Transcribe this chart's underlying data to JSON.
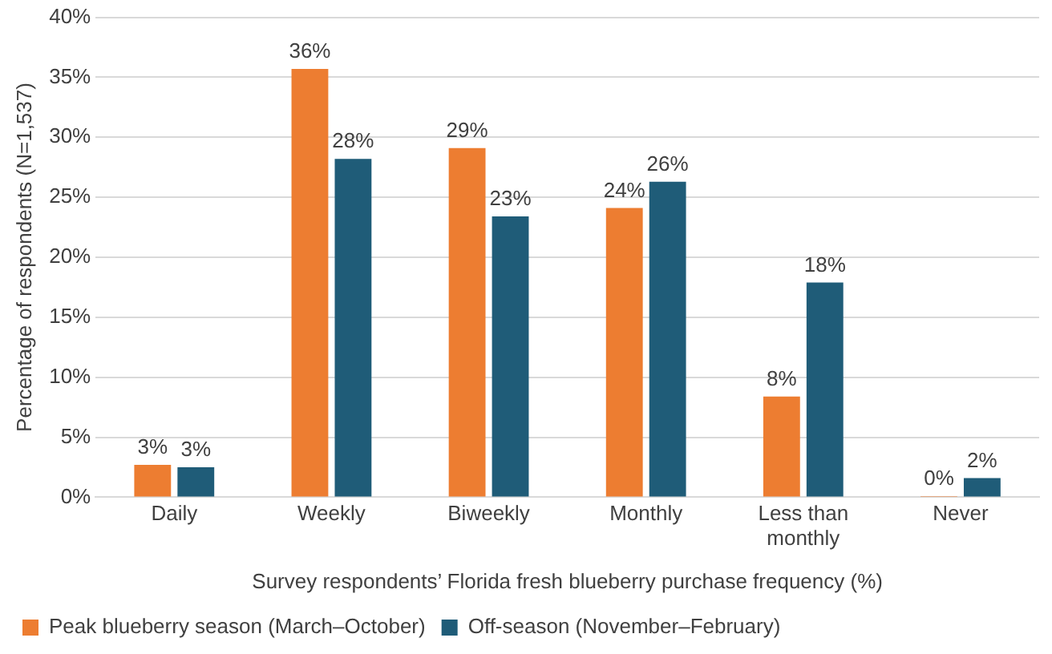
{
  "chart_data": {
    "type": "bar",
    "xlabel": "Survey respondents’ Florida fresh blueberry purchase frequency (%)",
    "ylabel": "Percentage of respondents (N=1,537)",
    "categories": [
      "Daily",
      "Weekly",
      "Biweekly",
      "Monthly",
      "Less than monthly",
      "Never"
    ],
    "series": [
      {
        "name": "Peak blueberry season (March–October)",
        "color": "#ed7d31",
        "values": [
          2.7,
          35.7,
          29.1,
          24.1,
          8.4,
          0.1
        ],
        "value_labels": [
          "3%",
          "36%",
          "29%",
          "24%",
          "8%",
          "0%"
        ]
      },
      {
        "name": "Off-season (November–February)",
        "color": "#1f5c78",
        "values": [
          2.5,
          28.2,
          23.4,
          26.3,
          17.9,
          1.6
        ],
        "value_labels": [
          "3%",
          "28%",
          "23%",
          "26%",
          "18%",
          "2%"
        ]
      }
    ],
    "ylim": [
      0,
      40
    ],
    "yticks": [
      {
        "value": 0,
        "label": "0%"
      },
      {
        "value": 5,
        "label": "5%"
      },
      {
        "value": 10,
        "label": "10%"
      },
      {
        "value": 15,
        "label": "15%"
      },
      {
        "value": 20,
        "label": "20%"
      },
      {
        "value": 25,
        "label": "25%"
      },
      {
        "value": 30,
        "label": "30%"
      },
      {
        "value": 35,
        "label": "35%"
      },
      {
        "value": 40,
        "label": "40%"
      }
    ],
    "grid": "y",
    "legend": "bottom"
  }
}
